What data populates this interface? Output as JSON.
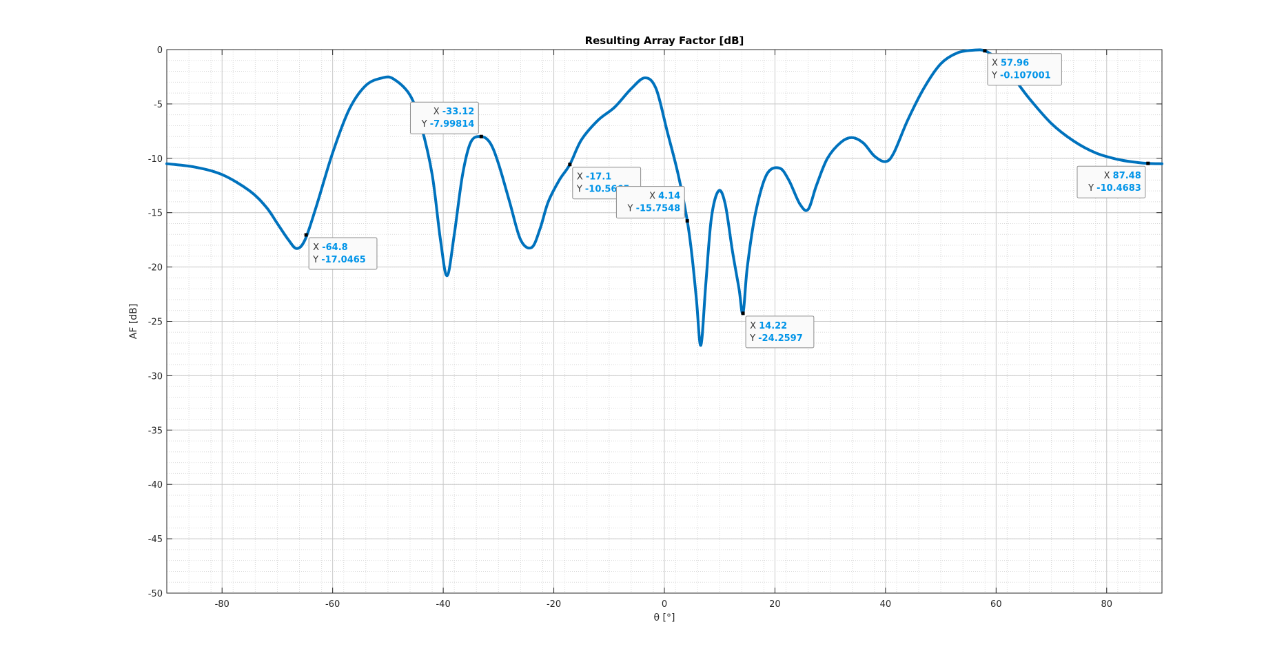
{
  "chart_data": {
    "type": "line",
    "title": "Resulting Array Factor [dB]",
    "xlabel": "θ [°]",
    "ylabel": "AF [dB]",
    "xlim": [
      -90,
      90
    ],
    "ylim": [
      -50,
      0
    ],
    "xticks": [
      -80,
      -60,
      -40,
      -20,
      0,
      20,
      40,
      60,
      80
    ],
    "yticks": [
      0,
      -5,
      -10,
      -15,
      -20,
      -25,
      -30,
      -35,
      -40,
      -45,
      -50
    ],
    "grid": true,
    "minor_grid": true,
    "line_color": "#0072BD",
    "datatip_color": "#0094E8",
    "series": [
      {
        "x": [
          -90,
          -85,
          -80,
          -75,
          -72,
          -70,
          -68,
          -66.5,
          -65,
          -63,
          -60,
          -57,
          -54,
          -51,
          -49,
          -46,
          -44,
          -42,
          -40.5,
          -39.3,
          -38,
          -36.5,
          -35,
          -33.12,
          -31.5,
          -30,
          -28,
          -26,
          -24,
          -22.5,
          -21,
          -19,
          -17.1,
          -15,
          -12,
          -9,
          -6,
          -3.5,
          -1.5,
          0.5,
          2.5,
          4.14,
          5,
          5.8,
          6.6,
          7.5,
          8.5,
          9.8,
          11,
          12.3,
          13.5,
          14.22,
          15,
          16.5,
          18.5,
          20.8,
          22.5,
          24.5,
          26,
          27.5,
          29.5,
          32,
          34,
          36,
          38,
          40,
          41.5,
          44,
          47,
          50,
          53,
          56,
          57.96,
          60,
          63,
          66,
          70,
          74,
          78,
          82,
          85,
          87.48,
          90
        ],
        "y": [
          -10.5,
          -10.8,
          -11.5,
          -13.0,
          -14.5,
          -16.0,
          -17.5,
          -18.3,
          -17.5,
          -14.5,
          -9.5,
          -5.5,
          -3.3,
          -2.6,
          -2.7,
          -4.2,
          -7.0,
          -11.5,
          -17.5,
          -20.8,
          -17.0,
          -11.5,
          -8.5,
          -8.0,
          -8.6,
          -10.5,
          -14.0,
          -17.5,
          -18.2,
          -16.5,
          -14.0,
          -12.0,
          -10.57,
          -8.3,
          -6.5,
          -5.3,
          -3.6,
          -2.6,
          -3.6,
          -7.5,
          -11.5,
          -15.75,
          -19.0,
          -23.0,
          -27.2,
          -21.5,
          -15.5,
          -13.0,
          -14.2,
          -18.5,
          -22.0,
          -24.26,
          -20.0,
          -15.0,
          -11.5,
          -10.9,
          -12.0,
          -14.2,
          -14.7,
          -12.5,
          -10.0,
          -8.5,
          -8.1,
          -8.6,
          -9.8,
          -10.3,
          -9.5,
          -6.5,
          -3.5,
          -1.3,
          -0.3,
          -0.05,
          -0.11,
          -0.8,
          -2.5,
          -4.5,
          -6.8,
          -8.4,
          -9.5,
          -10.1,
          -10.35,
          -10.47,
          -10.5
        ]
      }
    ],
    "annotations": [
      {
        "x": -64.8,
        "y": -17.0465,
        "x_label": "X",
        "y_label": "Y",
        "x_text": "-64.8",
        "y_text": "-17.0465"
      },
      {
        "x": -33.12,
        "y": -7.99814,
        "x_label": "X",
        "y_label": "Y",
        "x_text": "-33.12",
        "y_text": "-7.99814"
      },
      {
        "x": -17.1,
        "y": -10.5665,
        "x_label": "X",
        "y_label": "Y",
        "x_text": "-17.1",
        "y_text": "-10.5665"
      },
      {
        "x": 4.14,
        "y": -15.7548,
        "x_label": "X",
        "y_label": "Y",
        "x_text": "4.14",
        "y_text": "-15.7548"
      },
      {
        "x": 14.22,
        "y": -24.2597,
        "x_label": "X",
        "y_label": "Y",
        "x_text": "14.22",
        "y_text": "-24.2597"
      },
      {
        "x": 57.96,
        "y": -0.107001,
        "x_label": "X",
        "y_label": "Y",
        "x_text": "57.96",
        "y_text": "-0.107001"
      },
      {
        "x": 87.48,
        "y": -10.4683,
        "x_label": "X",
        "y_label": "Y",
        "x_text": "87.48",
        "y_text": "-10.4683"
      }
    ]
  }
}
